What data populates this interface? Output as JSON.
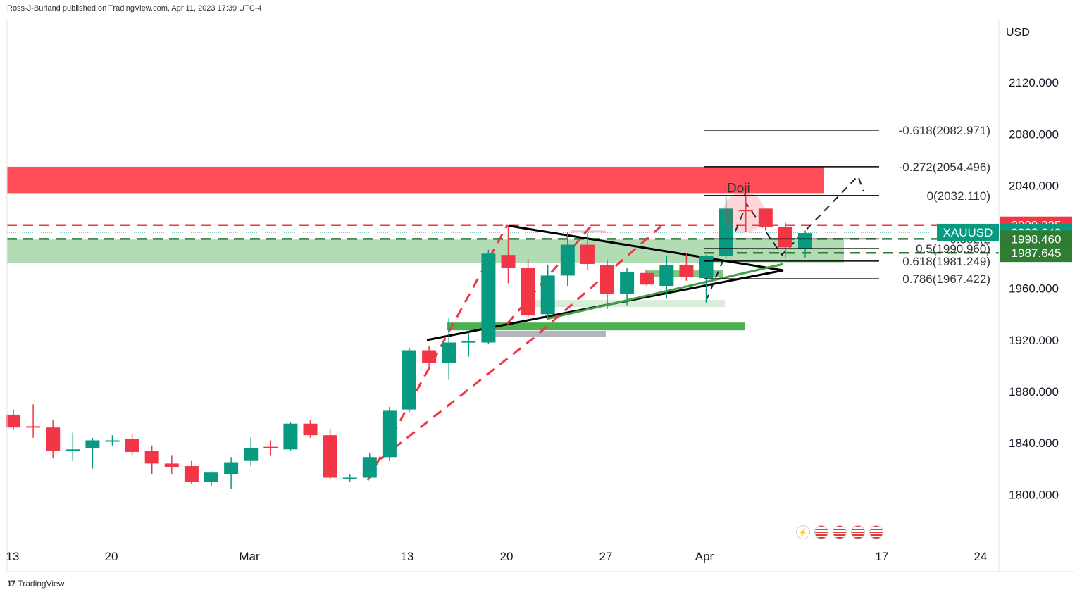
{
  "header": {
    "publisher_line": "Ross-J-Burland published on TradingView.com, Apr 11, 2023 17:39 UTC-4"
  },
  "footer": {
    "brand": "TradingView",
    "logo_glyph": "17"
  },
  "colors": {
    "up": "#089981",
    "down": "#f23645",
    "zone_red": "#ff4d5a",
    "zone_green": "#a5d6a7",
    "bar_green": "#4caf50",
    "gray": "#b2b5be"
  },
  "icons": [
    "lightning-icon",
    "us-flag-icon",
    "us-flag-icon",
    "us-flag-icon",
    "us-flag-icon"
  ],
  "annotations": {
    "doji": "Doji"
  },
  "price_tags": {
    "currency": "USD",
    "red_tag": "2009.225",
    "symbol": "XAUUSD",
    "symbol_price": "2003.640",
    "green_tag_1": "1998.460",
    "green_tag_2": "1987.645"
  },
  "fib_levels": [
    {
      "label": "-0.618(2082.971)",
      "price": 2082.971
    },
    {
      "label": "-0.272(2054.496)",
      "price": 2054.496
    },
    {
      "label": "0(2032.110)",
      "price": 2032.11
    },
    {
      "label": "0.382(2",
      "price": 1998.46
    },
    {
      "label": "0.5(1990.960)",
      "price": 1990.96
    },
    {
      "label": "0.618(1981.249)",
      "price": 1981.249
    },
    {
      "label": "0.786(1967.422)",
      "price": 1967.422
    }
  ],
  "chart_data": {
    "type": "candlestick",
    "title": "",
    "ylabel": "USD",
    "ylim": [
      1770,
      2160
    ],
    "yticks": [
      "2120.000",
      "2080.000",
      "2040.000",
      "1960.000",
      "1920.000",
      "1880.000",
      "1840.000",
      "1800.000"
    ],
    "xticks": [
      "13",
      "20",
      "Mar",
      "13",
      "20",
      "27",
      "Apr",
      "17",
      "24"
    ],
    "grid": false,
    "candles": [
      {
        "o": 1862,
        "h": 1866,
        "l": 1850,
        "c": 1852
      },
      {
        "o": 1853,
        "h": 1870,
        "l": 1844,
        "c": 1852
      },
      {
        "o": 1852,
        "h": 1858,
        "l": 1828,
        "c": 1834
      },
      {
        "o": 1835,
        "h": 1848,
        "l": 1826,
        "c": 1835
      },
      {
        "o": 1836,
        "h": 1844,
        "l": 1820,
        "c": 1842
      },
      {
        "o": 1841,
        "h": 1846,
        "l": 1838,
        "c": 1842
      },
      {
        "o": 1843,
        "h": 1847,
        "l": 1830,
        "c": 1833
      },
      {
        "o": 1834,
        "h": 1838,
        "l": 1816,
        "c": 1824
      },
      {
        "o": 1824,
        "h": 1830,
        "l": 1816,
        "c": 1821
      },
      {
        "o": 1822,
        "h": 1826,
        "l": 1808,
        "c": 1810
      },
      {
        "o": 1810,
        "h": 1818,
        "l": 1806,
        "c": 1817
      },
      {
        "o": 1816,
        "h": 1829,
        "l": 1804,
        "c": 1825
      },
      {
        "o": 1826,
        "h": 1844,
        "l": 1822,
        "c": 1836
      },
      {
        "o": 1837,
        "h": 1842,
        "l": 1830,
        "c": 1836
      },
      {
        "o": 1835,
        "h": 1856,
        "l": 1834,
        "c": 1855
      },
      {
        "o": 1855,
        "h": 1858,
        "l": 1844,
        "c": 1846
      },
      {
        "o": 1846,
        "h": 1851,
        "l": 1812,
        "c": 1813
      },
      {
        "o": 1813,
        "h": 1816,
        "l": 1810,
        "c": 1813
      },
      {
        "o": 1813,
        "h": 1832,
        "l": 1812,
        "c": 1829
      },
      {
        "o": 1829,
        "h": 1868,
        "l": 1826,
        "c": 1865
      },
      {
        "o": 1866,
        "h": 1914,
        "l": 1864,
        "c": 1912
      },
      {
        "o": 1912,
        "h": 1915,
        "l": 1897,
        "c": 1902
      },
      {
        "o": 1902,
        "h": 1937,
        "l": 1889,
        "c": 1918
      },
      {
        "o": 1918,
        "h": 1926,
        "l": 1907,
        "c": 1919
      },
      {
        "o": 1918,
        "h": 1990,
        "l": 1917,
        "c": 1987
      },
      {
        "o": 1986,
        "h": 2009,
        "l": 1964,
        "c": 1976
      },
      {
        "o": 1976,
        "h": 1983,
        "l": 1937,
        "c": 1939
      },
      {
        "o": 1940,
        "h": 1978,
        "l": 1937,
        "c": 1970
      },
      {
        "o": 1970,
        "h": 2004,
        "l": 1962,
        "c": 1994
      },
      {
        "o": 1994,
        "h": 2003,
        "l": 1974,
        "c": 1979
      },
      {
        "o": 1978,
        "h": 1982,
        "l": 1944,
        "c": 1956
      },
      {
        "o": 1956,
        "h": 1976,
        "l": 1947,
        "c": 1973
      },
      {
        "o": 1972,
        "h": 1974,
        "l": 1962,
        "c": 1963
      },
      {
        "o": 1962,
        "h": 1985,
        "l": 1952,
        "c": 1978
      },
      {
        "o": 1978,
        "h": 1987,
        "l": 1966,
        "c": 1969
      },
      {
        "o": 1968,
        "h": 1986,
        "l": 1949,
        "c": 1985
      },
      {
        "o": 1985,
        "h": 2031,
        "l": 1983,
        "c": 2022
      },
      {
        "o": 2021,
        "h": 2032,
        "l": 2004,
        "c": 2020
      },
      {
        "o": 2022,
        "h": 2022,
        "l": 2005,
        "c": 2008
      },
      {
        "o": 2008,
        "h": 2011,
        "l": 1984,
        "c": 1992
      },
      {
        "o": 1991,
        "h": 2005,
        "l": 1984,
        "c": 2003
      }
    ]
  }
}
